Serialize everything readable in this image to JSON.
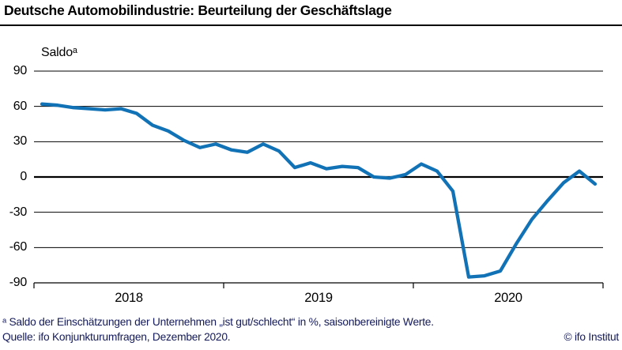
{
  "header": {
    "title": "Deutsche Automobilindustrie: Beurteilung der Geschäftslage"
  },
  "axis": {
    "ylabel": "Saldoᵃ"
  },
  "chart_data": {
    "type": "line",
    "title": "Deutsche Automobilindustrie: Beurteilung der Geschäftslage",
    "ylabel": "Saldoᵃ",
    "unit": "Saldo in %, saisonbereinigt",
    "line_color": "#1272b6",
    "grid": "horizontal",
    "legend": "none",
    "ylim": [
      -90,
      90
    ],
    "yticks": [
      90,
      60,
      30,
      0,
      -30,
      -60,
      -90
    ],
    "x_year_labels": [
      "2018",
      "2019",
      "2020"
    ],
    "months": [
      "2018-01",
      "2018-02",
      "2018-03",
      "2018-04",
      "2018-05",
      "2018-06",
      "2018-07",
      "2018-08",
      "2018-09",
      "2018-10",
      "2018-11",
      "2018-12",
      "2019-01",
      "2019-02",
      "2019-03",
      "2019-04",
      "2019-05",
      "2019-06",
      "2019-07",
      "2019-08",
      "2019-09",
      "2019-10",
      "2019-11",
      "2019-12",
      "2020-01",
      "2020-02",
      "2020-03",
      "2020-04",
      "2020-05",
      "2020-06",
      "2020-07",
      "2020-08",
      "2020-09",
      "2020-10",
      "2020-11",
      "2020-12"
    ],
    "values": [
      62,
      61,
      59,
      58,
      57,
      58,
      54,
      44,
      39,
      31,
      25,
      28,
      23,
      21,
      28,
      22,
      8,
      12,
      7,
      9,
      8,
      0,
      -1,
      2,
      11,
      5,
      -12,
      -85,
      -84,
      -80,
      -57,
      -36,
      -20,
      -5,
      5,
      -6
    ]
  },
  "footnotes": {
    "note": "ᵃ Saldo der Einschätzungen der Unternehmen „ist gut/schlecht“ in %, saisonbereinigte Werte.",
    "source": "Quelle: ifo Konjunkturumfragen, Dezember 2020.",
    "copyright": "© ifo Institut"
  }
}
